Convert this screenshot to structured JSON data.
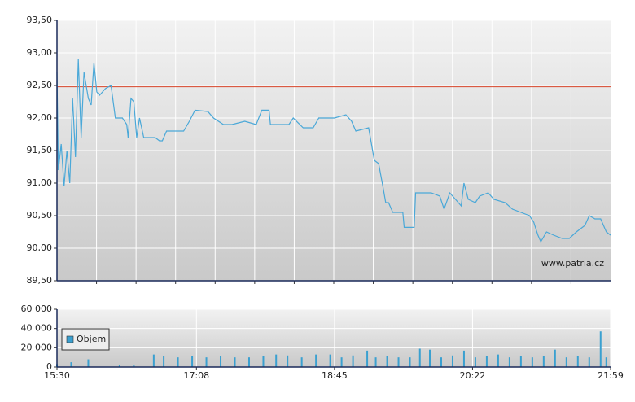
{
  "chart_data": [
    {
      "type": "line",
      "annotation": "www.patria.cz",
      "xlim": [
        "15:30",
        "21:59"
      ],
      "ylim": [
        89.5,
        93.5
      ],
      "yticks": [
        {
          "value": 89.5,
          "label": "89,50"
        },
        {
          "value": 90,
          "label": "90,00"
        },
        {
          "value": 90.5,
          "label": "90,50"
        },
        {
          "value": 91,
          "label": "91,00"
        },
        {
          "value": 91.5,
          "label": "91,50"
        },
        {
          "value": 92,
          "label": "92,00"
        },
        {
          "value": 92.5,
          "label": "92,50"
        },
        {
          "value": 93,
          "label": "93,00"
        },
        {
          "value": 93.5,
          "label": "93,50"
        }
      ],
      "grid": true,
      "reference_line": 92.48,
      "reference_color": "#d9462a",
      "color": "#4aa8d8",
      "x": [
        "15:30",
        "15:31",
        "15:33",
        "15:35",
        "15:37",
        "15:39",
        "15:41",
        "15:43",
        "15:45",
        "15:47",
        "15:49",
        "15:52",
        "15:54",
        "15:56",
        "15:58",
        "16:00",
        "16:04",
        "16:08",
        "16:11",
        "16:16",
        "16:19",
        "16:20",
        "16:22",
        "16:24",
        "16:26",
        "16:28",
        "16:31",
        "16:39",
        "16:42",
        "16:44",
        "16:47",
        "16:53",
        "16:59",
        "17:03",
        "17:07",
        "17:16",
        "17:20",
        "17:27",
        "17:33",
        "17:42",
        "17:50",
        "17:54",
        "17:59",
        "18:00",
        "18:13",
        "18:16",
        "18:23",
        "18:30",
        "18:34",
        "18:45",
        "18:53",
        "18:57",
        "19:00",
        "19:09",
        "19:11",
        "19:13",
        "19:16",
        "19:19",
        "19:21",
        "19:23",
        "19:26",
        "19:33",
        "19:34",
        "19:41",
        "19:42",
        "19:53",
        "19:59",
        "20:02",
        "20:06",
        "20:10",
        "20:14",
        "20:16",
        "20:19",
        "20:24",
        "20:27",
        "20:33",
        "20:37",
        "20:45",
        "20:50",
        "20:56",
        "21:02",
        "21:05",
        "21:08",
        "21:10",
        "21:14",
        "21:19",
        "21:25",
        "21:30",
        "21:35",
        "21:41",
        "21:44",
        "21:48",
        "21:52",
        "21:56",
        "21:59"
      ],
      "values": [
        92.7,
        91.2,
        91.6,
        90.95,
        91.5,
        91.0,
        92.3,
        91.4,
        92.9,
        91.7,
        92.7,
        92.3,
        92.2,
        92.85,
        92.4,
        92.35,
        92.45,
        92.5,
        92.0,
        92.0,
        91.9,
        91.7,
        92.3,
        92.25,
        91.7,
        92.0,
        91.7,
        91.7,
        91.65,
        91.65,
        91.8,
        91.8,
        91.8,
        91.95,
        92.12,
        92.1,
        92.0,
        91.9,
        91.9,
        91.95,
        91.9,
        92.12,
        92.12,
        91.9,
        91.9,
        92.0,
        91.85,
        91.85,
        92.0,
        92.0,
        92.05,
        91.95,
        91.8,
        91.85,
        91.6,
        91.35,
        91.3,
        90.95,
        90.7,
        90.7,
        90.55,
        90.55,
        90.32,
        90.32,
        90.85,
        90.85,
        90.8,
        90.6,
        90.85,
        90.75,
        90.65,
        91.0,
        90.75,
        90.7,
        90.8,
        90.85,
        90.75,
        90.7,
        90.6,
        90.55,
        90.5,
        90.4,
        90.2,
        90.1,
        90.25,
        90.2,
        90.15,
        90.15,
        90.25,
        90.35,
        90.5,
        90.45,
        90.45,
        90.25,
        90.2
      ]
    },
    {
      "type": "bar",
      "xlim": [
        "15:30",
        "21:59"
      ],
      "xticks": [
        "15:30",
        "17:08",
        "18:45",
        "20:22",
        "21:59"
      ],
      "ylim": [
        0,
        60000
      ],
      "yticks": [
        {
          "value": 0,
          "label": "0"
        },
        {
          "value": 20000,
          "label": "20 000"
        },
        {
          "value": 40000,
          "label": "40 000"
        },
        {
          "value": 60000,
          "label": "60 000"
        }
      ],
      "grid": true,
      "legend": "upper-left",
      "x": [
        "15:30",
        "15:40",
        "15:52",
        "16:14",
        "16:24",
        "16:38",
        "16:45",
        "16:55",
        "17:05",
        "17:15",
        "17:25",
        "17:35",
        "17:45",
        "17:55",
        "18:04",
        "18:12",
        "18:22",
        "18:32",
        "18:42",
        "18:50",
        "18:58",
        "19:08",
        "19:14",
        "19:22",
        "19:30",
        "19:38",
        "19:45",
        "19:52",
        "20:00",
        "20:08",
        "20:16",
        "20:24",
        "20:32",
        "20:40",
        "20:48",
        "20:56",
        "21:04",
        "21:12",
        "21:20",
        "21:28",
        "21:36",
        "21:44",
        "21:52",
        "21:56"
      ],
      "series": [
        {
          "name": "Objem",
          "color": "#3aa0d0",
          "values": [
            3000,
            5000,
            8000,
            2000,
            2000,
            13000,
            11000,
            10000,
            11000,
            10000,
            11000,
            10000,
            10000,
            11000,
            13000,
            12000,
            10000,
            13000,
            13000,
            10000,
            12000,
            17000,
            10000,
            11000,
            10000,
            10000,
            19000,
            18000,
            10000,
            12000,
            17000,
            10000,
            11000,
            13000,
            10000,
            11000,
            10000,
            11000,
            18000,
            10000,
            11000,
            10000,
            37000,
            10000
          ]
        }
      ]
    }
  ]
}
